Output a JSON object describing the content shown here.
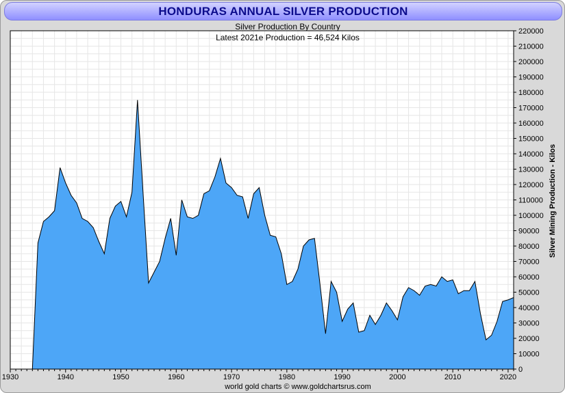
{
  "chart_data": {
    "type": "area",
    "title": "HONDURAS ANNUAL SILVER PRODUCTION",
    "subtitle": "Silver Production By Country",
    "annotation": "Latest 2021e Production = 46,524 Kilos",
    "ylabel": "Silver Mining Production - Kilos",
    "footer": "world gold charts © www.goldchartsrus.com",
    "xlim": [
      1930,
      2021
    ],
    "ylim": [
      0,
      220000
    ],
    "x_ticks": [
      1930,
      1940,
      1950,
      1960,
      1970,
      1980,
      1990,
      2000,
      2010,
      2020
    ],
    "y_ticks": [
      0,
      10000,
      20000,
      30000,
      40000,
      50000,
      60000,
      70000,
      80000,
      90000,
      100000,
      110000,
      120000,
      130000,
      140000,
      150000,
      160000,
      170000,
      180000,
      190000,
      200000,
      210000,
      220000
    ],
    "grid": true,
    "fill_color": "#4da6f7",
    "line_color": "#000000",
    "x": [
      1934,
      1935,
      1936,
      1937,
      1938,
      1939,
      1940,
      1941,
      1942,
      1943,
      1944,
      1945,
      1946,
      1947,
      1948,
      1949,
      1950,
      1951,
      1952,
      1953,
      1954,
      1955,
      1956,
      1957,
      1958,
      1959,
      1960,
      1961,
      1962,
      1963,
      1964,
      1965,
      1966,
      1967,
      1968,
      1969,
      1970,
      1971,
      1972,
      1973,
      1974,
      1975,
      1976,
      1977,
      1978,
      1979,
      1980,
      1981,
      1982,
      1983,
      1984,
      1985,
      1986,
      1987,
      1988,
      1989,
      1990,
      1991,
      1992,
      1993,
      1994,
      1995,
      1996,
      1997,
      1998,
      1999,
      2000,
      2001,
      2002,
      2003,
      2004,
      2005,
      2006,
      2007,
      2008,
      2009,
      2010,
      2011,
      2012,
      2013,
      2014,
      2015,
      2016,
      2017,
      2018,
      2019,
      2020,
      2021
    ],
    "values": [
      0,
      82000,
      96000,
      99000,
      103000,
      131000,
      121000,
      113000,
      108000,
      98000,
      96000,
      92000,
      83000,
      75000,
      98000,
      106000,
      109000,
      99000,
      115000,
      175000,
      115000,
      56000,
      63000,
      70000,
      85000,
      98000,
      74000,
      110000,
      99000,
      98000,
      100000,
      114000,
      116000,
      125000,
      137000,
      121000,
      118000,
      113000,
      112000,
      98000,
      114000,
      118000,
      100000,
      87000,
      86000,
      75000,
      55000,
      57000,
      65000,
      80000,
      84000,
      85000,
      55000,
      23000,
      57000,
      50000,
      31000,
      39000,
      43000,
      24000,
      25000,
      35000,
      29000,
      35000,
      43000,
      38000,
      32000,
      47000,
      53000,
      51000,
      48000,
      54000,
      55000,
      54000,
      60000,
      57000,
      58000,
      49000,
      51000,
      51000,
      57000,
      36000,
      19000,
      22000,
      31000,
      44000,
      45000,
      46524
    ]
  }
}
